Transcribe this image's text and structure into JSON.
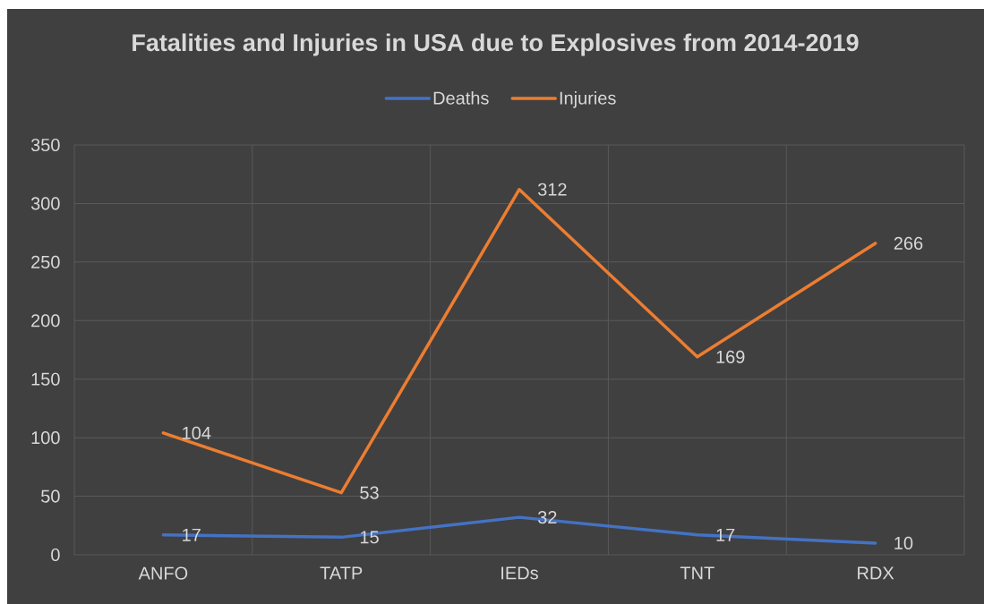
{
  "chart_data": {
    "type": "line",
    "title": "Fatalities and Injuries in USA due to Explosives from 2014-2019",
    "categories": [
      "ANFO",
      "TATP",
      "IEDs",
      "TNT",
      "RDX"
    ],
    "series": [
      {
        "name": "Deaths",
        "color": "#4472c4",
        "values": [
          17,
          15,
          32,
          17,
          10
        ]
      },
      {
        "name": "Injuries",
        "color": "#ed7d31",
        "values": [
          104,
          53,
          312,
          169,
          266
        ]
      }
    ],
    "ylim": [
      0,
      350
    ],
    "yticks": [
      0,
      50,
      100,
      150,
      200,
      250,
      300,
      350
    ],
    "grid": true,
    "legend": "top",
    "data_labels": true,
    "marker": "none",
    "line_style": "solid"
  }
}
